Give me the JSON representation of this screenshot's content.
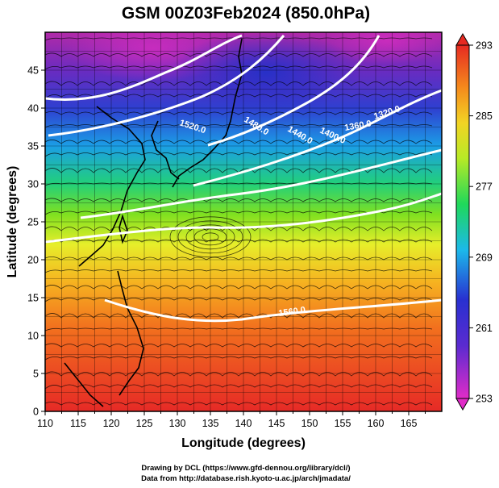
{
  "title": "GSM 00Z03Feb2024 (850.0hPa)",
  "xlabel": "Longitude (degrees)",
  "ylabel": "Latitude  (degrees)",
  "x_ticks": [
    "110",
    "115",
    "120",
    "125",
    "130",
    "135",
    "140",
    "145",
    "150",
    "155",
    "160",
    "165"
  ],
  "y_ticks": [
    "0",
    "5",
    "10",
    "15",
    "20",
    "25",
    "30",
    "35",
    "40",
    "45"
  ],
  "colorbar_ticks": [
    "293",
    "285",
    "277",
    "269",
    "261",
    "253"
  ],
  "contour_labels": [
    "1520.0",
    "1480.0",
    "1440.0",
    "1400.0",
    "1360.0",
    "1320.0",
    "1560.0"
  ],
  "credits": [
    "Drawing by DCL (https://www.gfd-dennou.org/library/dcl/)",
    "Data from http://database.rish.kyoto-u.ac.jp/arch/jmadata/"
  ],
  "chart_data": {
    "type": "heatmap",
    "variable": "temperature",
    "units": "K",
    "xlim": [
      110,
      170
    ],
    "ylim": [
      0,
      50
    ],
    "clim": [
      253,
      293
    ],
    "colormap": [
      "#d52fc0",
      "#2b22c8",
      "#1ec4e8",
      "#1fd21f",
      "#e8ef2a",
      "#f09818",
      "#e02c22"
    ],
    "overlays": [
      "streamlines",
      "geopotential height contours (m)",
      "coastlines"
    ],
    "contour_levels": [
      1320,
      1360,
      1400,
      1440,
      1480,
      1520,
      1560
    ],
    "grid": true
  }
}
